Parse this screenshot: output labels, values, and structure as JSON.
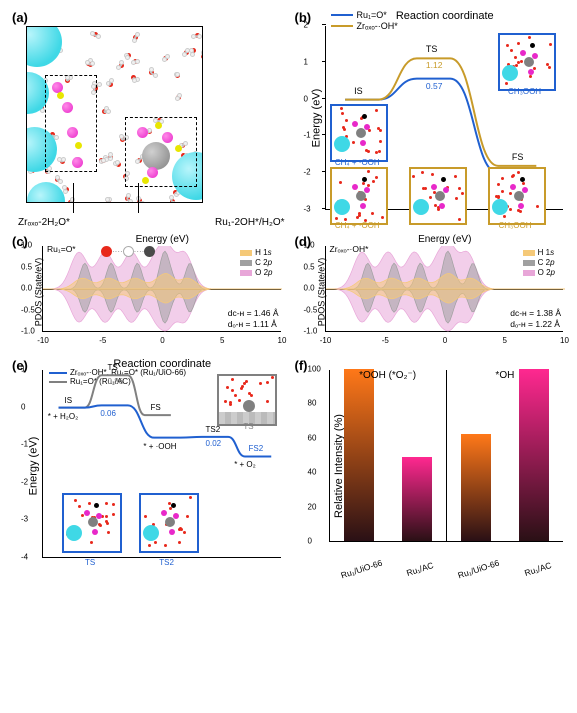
{
  "colors": {
    "cyan": "#3fd8e6",
    "magenta": "#e828c9",
    "yellow": "#e8e600",
    "red": "#e8281b",
    "gray_atom": "#808080",
    "white_atom": "#f0f0f0",
    "dark_gray": "#4a4a4a",
    "blue_line": "#2060d0",
    "gold_line": "#c89b2a",
    "gray_line": "#808080",
    "h1s": "#f5c978",
    "c2p": "#a0a0a0",
    "o2p": "#e8a6d8",
    "bar_orange": "#ff7818",
    "bar_pink": "#ff2890"
  },
  "panel_labels": {
    "a": "(a)",
    "b": "(b)",
    "c": "(c)",
    "d": "(d)",
    "e": "(e)",
    "f": "(f)"
  },
  "panel_a": {
    "label_left": "Zrₒₓₒ-2H₂O*",
    "label_right": "Ru₁-2OH*/H₂O*"
  },
  "panel_b": {
    "legend": [
      {
        "color_key": "blue_line",
        "text": "Ru₁=O*"
      },
      {
        "color_key": "gold_line",
        "text": "Zrₒₓₒ-·OH*"
      }
    ],
    "ylabel": "Energy (eV)",
    "xlabel": "Reaction coordinate",
    "ylim": [
      -3,
      2
    ],
    "ytick_step": 1,
    "states": {
      "IS": "IS",
      "TS": "TS",
      "FS": "FS"
    },
    "barrier_blue": "0.57",
    "barrier_gold": "1.12",
    "inset_labels": {
      "blue_is": "CH₄ + ·OOH",
      "blue_fs": "CH₃OOH",
      "gold_is": "CH₄ + ·OOH",
      "gold_ts": "",
      "gold_fs": "CH₃OOH"
    }
  },
  "panel_c": {
    "title": "Ru₁=O*",
    "ylabel": "PDOS (State/eV)",
    "xlabel": "Energy (eV)",
    "xlim": [
      -10,
      10
    ],
    "xtick_step": 5,
    "ylim": [
      -1.0,
      1.0
    ],
    "ytick_step": 0.5,
    "legend": [
      {
        "label": "H 1s",
        "color_key": "h1s",
        "italic": "s"
      },
      {
        "label": "C 2p",
        "color_key": "c2p",
        "italic": "p"
      },
      {
        "label": "O 2p",
        "color_key": "o2p",
        "italic": "p"
      }
    ],
    "dCH": "dᴄ-ʜ = 1.46 Å",
    "dOH": "dₒ-ʜ = 1.11 Å"
  },
  "panel_d": {
    "title": "Zrₒₓₒ-·OH*",
    "ylabel": "PDOS (State/eV)",
    "xlabel": "Energy (eV)",
    "xlim": [
      -10,
      10
    ],
    "xtick_step": 5,
    "ylim": [
      -1.0,
      1.0
    ],
    "ytick_step": 0.5,
    "dCH": "dᴄ-ʜ = 1.38 Å",
    "dOH": "dₒ-ʜ = 1.22 Å"
  },
  "panel_e": {
    "legend": [
      {
        "color_key": "blue_line",
        "text": "Zrₒₓₒ-·OH*, Ru₁=O* (Ru₁/UiO-66)"
      },
      {
        "color_key": "gray_line",
        "text": "Ru₁=O* (Ru₁/AC)"
      }
    ],
    "ylabel": "Energy (eV)",
    "xlabel": "Reaction coordinate",
    "ylim": [
      -4,
      1
    ],
    "ytick_step": 1,
    "states": {
      "start": "* + H₂O₂",
      "IS": "IS",
      "TS": "TS",
      "FS": "FS",
      "mid": "* + ·OOH",
      "TS2": "TS2",
      "FS2": "FS2",
      "end": "* + O₂"
    },
    "barrier_gray": "0.86",
    "barrier_blue1": "0.06",
    "barrier_blue2": "0.02",
    "inset_labels": {
      "ts": "TS",
      "ts2": "TS2",
      "gray_ts": "TS"
    }
  },
  "panel_f": {
    "ylabel": "Relative Intensity (%)",
    "ylim": [
      0,
      100
    ],
    "ytick_step": 20,
    "left_title": "*OOH (*O₂⁻)",
    "right_title": "*OH",
    "categories": [
      "Ru₁/UiO-66",
      "Ru₁/AC",
      "Ru₁/UiO-66",
      "Ru₁/AC"
    ],
    "values": [
      100,
      49,
      62,
      100
    ],
    "bar_color_keys": [
      "bar_orange",
      "bar_pink",
      "bar_orange",
      "bar_pink"
    ]
  }
}
